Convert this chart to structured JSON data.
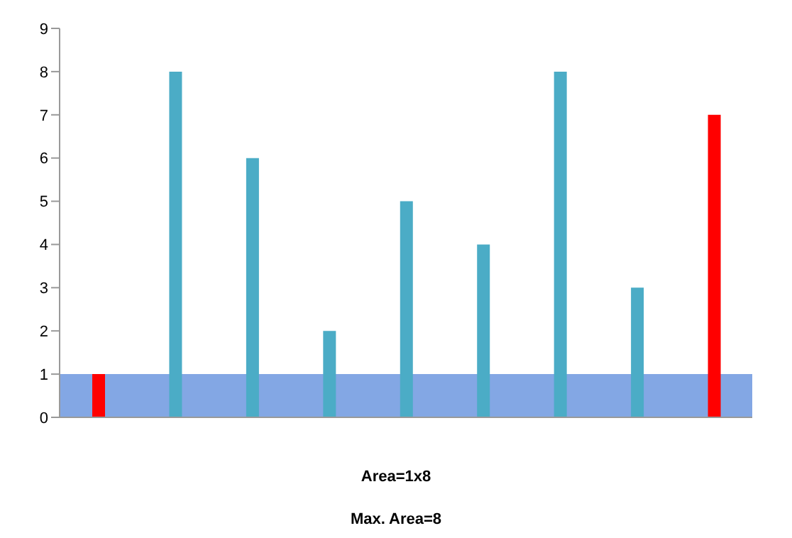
{
  "chart_data": {
    "type": "bar",
    "categories": [
      null,
      null,
      null,
      null,
      null,
      null,
      null,
      null,
      null
    ],
    "values": [
      1,
      8,
      6,
      2,
      5,
      4,
      8,
      3,
      7
    ],
    "colors": [
      "#ff0000",
      "#4bacc6",
      "#4bacc6",
      "#4bacc6",
      "#4bacc6",
      "#4bacc6",
      "#4bacc6",
      "#4bacc6",
      "#ff0000"
    ],
    "ylim": [
      0,
      9
    ],
    "yticks": [
      0,
      1,
      2,
      3,
      4,
      5,
      6,
      7,
      8,
      9
    ],
    "grid": false,
    "tick_labels": "y",
    "bands": [
      {
        "axis": "y",
        "from": 0,
        "to": 1,
        "color": "#4f81d9"
      }
    ],
    "annotations": [
      "Area=1x8",
      "Max. Area=8"
    ]
  }
}
